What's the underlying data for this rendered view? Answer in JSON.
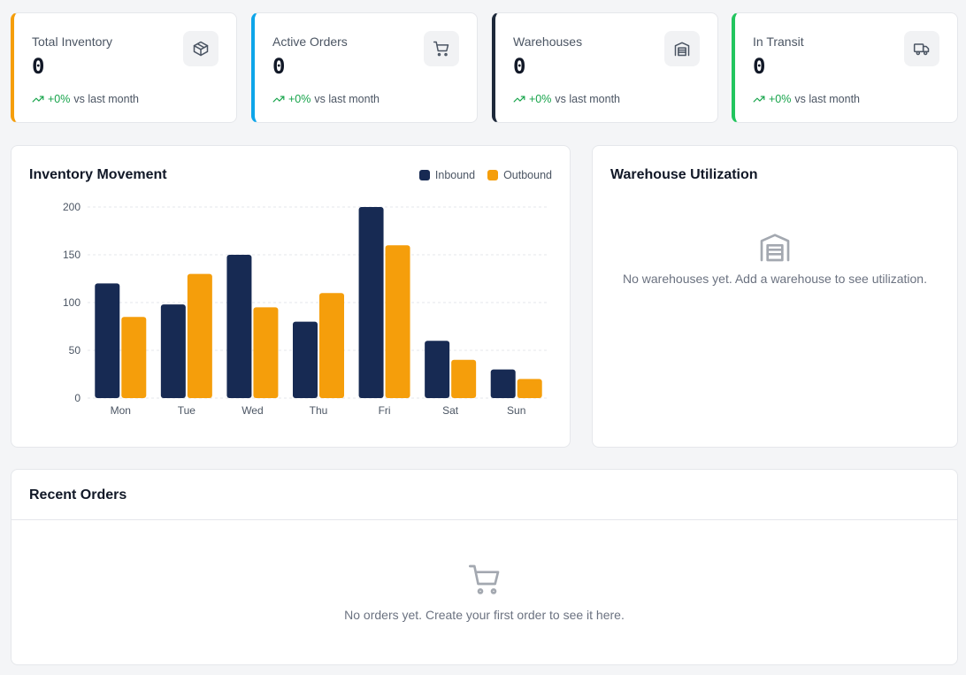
{
  "stats": [
    {
      "label": "Total Inventory",
      "value": "0",
      "trend": "+0%",
      "trend_suffix": "vs last month",
      "icon": "box-icon",
      "accent": "#f59e0b"
    },
    {
      "label": "Active Orders",
      "value": "0",
      "trend": "+0%",
      "trend_suffix": "vs last month",
      "icon": "cart-icon",
      "accent": "#0ea5e9"
    },
    {
      "label": "Warehouses",
      "value": "0",
      "trend": "+0%",
      "trend_suffix": "vs last month",
      "icon": "warehouse-icon",
      "accent": "#1e293b"
    },
    {
      "label": "In Transit",
      "value": "0",
      "trend": "+0%",
      "trend_suffix": "vs last month",
      "icon": "truck-icon",
      "accent": "#22c55e"
    }
  ],
  "movement": {
    "title": "Inventory Movement",
    "legend": [
      "Inbound",
      "Outbound"
    ]
  },
  "utilization": {
    "title": "Warehouse Utilization",
    "empty_text": "No warehouses yet. Add a warehouse to see utilization."
  },
  "orders": {
    "title": "Recent Orders",
    "empty_text": "No orders yet. Create your first order to see it here."
  },
  "colors": {
    "inbound": "#172a53",
    "outbound": "#f59e0b",
    "trend_up": "#16a34a"
  },
  "chart_data": {
    "type": "bar",
    "categories": [
      "Mon",
      "Tue",
      "Wed",
      "Thu",
      "Fri",
      "Sat",
      "Sun"
    ],
    "series": [
      {
        "name": "Inbound",
        "values": [
          120,
          98,
          150,
          80,
          200,
          60,
          30
        ]
      },
      {
        "name": "Outbound",
        "values": [
          85,
          130,
          95,
          110,
          160,
          40,
          20
        ]
      }
    ],
    "yticks": [
      0,
      50,
      100,
      150,
      200
    ],
    "ylim": [
      0,
      200
    ],
    "grid": true,
    "legend_position": "top-right"
  }
}
